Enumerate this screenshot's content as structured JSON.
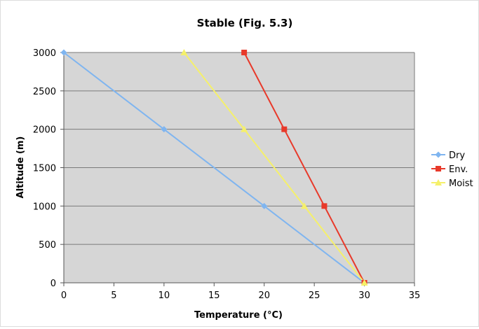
{
  "chart_data": {
    "type": "line",
    "title": "Stable (Fig. 5.3)",
    "xlabel": "Temperature (°C)",
    "ylabel": "Altitude (m)",
    "xlim": [
      0,
      35
    ],
    "ylim": [
      0,
      3000
    ],
    "xticks": [
      0,
      5,
      10,
      15,
      20,
      25,
      30,
      35
    ],
    "yticks": [
      0,
      500,
      1000,
      1500,
      2000,
      2500,
      3000
    ],
    "grid": "horizontal",
    "plot_background": "#d6d6d6",
    "legend_position": "right",
    "series": [
      {
        "name": "Dry",
        "color": "#7fb5f0",
        "marker": "diamond",
        "points": [
          [
            0,
            3000
          ],
          [
            10,
            2000
          ],
          [
            20,
            1000
          ],
          [
            30,
            0
          ]
        ]
      },
      {
        "name": "Env.",
        "color": "#e8392a",
        "marker": "square",
        "points": [
          [
            18,
            3000
          ],
          [
            22,
            2000
          ],
          [
            26,
            1000
          ],
          [
            30,
            0
          ]
        ]
      },
      {
        "name": "Moist",
        "color": "#f5f06a",
        "marker": "triangle",
        "points": [
          [
            12,
            3000
          ],
          [
            18,
            2000
          ],
          [
            24,
            1000
          ],
          [
            30,
            0
          ]
        ]
      }
    ]
  }
}
